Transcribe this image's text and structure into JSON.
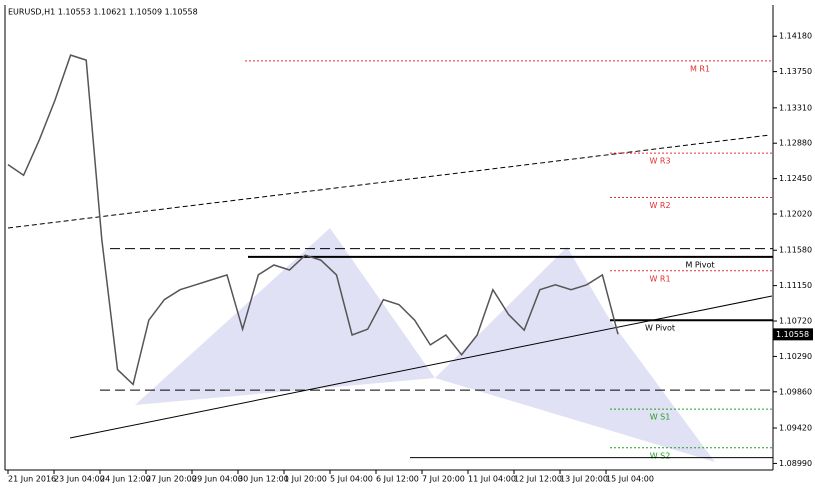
{
  "chart_data": {
    "type": "line",
    "title": "EURUSD,H1  1.10553 1.10621 1.10509 1.10558",
    "series": [
      {
        "name": "EURUSD",
        "color": "#555555",
        "values": [
          1.1262,
          1.1249,
          1.1292,
          1.134,
          1.1395,
          1.1389,
          1.1171,
          1.1013,
          1.0995,
          1.1073,
          1.1098,
          1.111,
          1.1116,
          1.1122,
          1.1128,
          1.1062,
          1.1128,
          1.114,
          1.1134,
          1.1152,
          1.1146,
          1.1128,
          1.1055,
          1.1062,
          1.1098,
          1.1092,
          1.1073,
          1.1043,
          1.1055,
          1.1031,
          1.1055,
          1.111,
          1.108,
          1.1061,
          1.111,
          1.1116,
          1.111,
          1.1116,
          1.1128,
          1.1056
        ]
      }
    ],
    "xticklabels": [
      "21 Jun 2016",
      "23 Jun 04:00",
      "24 Jun 12:00",
      "27 Jun 20:00",
      "29 Jun 04:00",
      "30 Jun 12:00",
      "1 Jul 20:00",
      "5 Jul 04:00",
      "6 Jul 12:00",
      "7 Jul 20:00",
      "11 Jul 04:00",
      "12 Jul 12:00",
      "13 Jul 20:00",
      "15 Jul 04:00"
    ],
    "ylim": [
      1.0891,
      1.1462
    ],
    "yticks": [
      {
        "value": 1.1418,
        "label": "1.14180"
      },
      {
        "value": 1.1375,
        "label": "1.13750"
      },
      {
        "value": 1.1331,
        "label": "1.13310"
      },
      {
        "value": 1.1288,
        "label": "1.12880"
      },
      {
        "value": 1.1245,
        "label": "1.12450"
      },
      {
        "value": 1.1202,
        "label": "1.12020"
      },
      {
        "value": 1.1158,
        "label": "1.11580"
      },
      {
        "value": 1.1115,
        "label": "1.11150"
      },
      {
        "value": 1.1072,
        "label": "1.10720"
      },
      {
        "value": 1.1029,
        "label": "1.10290"
      },
      {
        "value": 1.0986,
        "label": "1.09860"
      },
      {
        "value": 1.0942,
        "label": "1.09420"
      },
      {
        "value": 1.0899,
        "label": "1.08990"
      }
    ],
    "last_price": {
      "value": 1.10558,
      "label": "1.10558"
    },
    "levels": [
      {
        "name": "M R1",
        "value": 1.1388,
        "color": "#e03030",
        "style": "dotted"
      },
      {
        "name": "W R3",
        "value": 1.1276,
        "color": "#e03030",
        "style": "dotted"
      },
      {
        "name": "W R2",
        "value": 1.1222,
        "color": "#e03030",
        "style": "dotted"
      },
      {
        "value": 1.116,
        "color": "#000000",
        "style": "dashed"
      },
      {
        "name": "M Pivot",
        "value": 1.115,
        "color": "#000000",
        "style": "solid"
      },
      {
        "name": "W R1",
        "value": 1.1133,
        "color": "#e03030",
        "style": "dotted"
      },
      {
        "name": "W Pivot",
        "value": 1.1073,
        "color": "#000000",
        "style": "solid"
      },
      {
        "value": 1.0988,
        "color": "#000000",
        "style": "dashed"
      },
      {
        "name": "W S1",
        "value": 1.0965,
        "color": "#20a020",
        "style": "dotted"
      },
      {
        "name": "W S2",
        "value": 1.0918,
        "color": "#20a020",
        "style": "dotted"
      },
      {
        "value": 1.0906,
        "color": "#000000",
        "style": "solid"
      }
    ]
  }
}
